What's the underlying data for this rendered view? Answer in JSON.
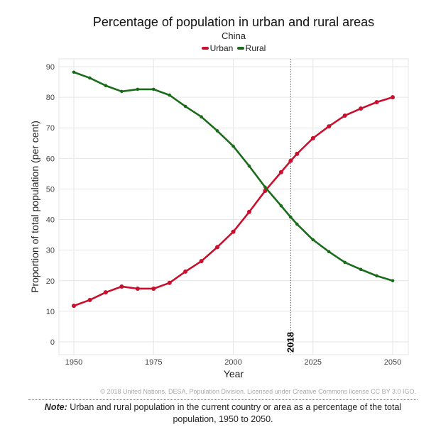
{
  "chart_data": {
    "type": "line",
    "title": "Percentage of population in urban and rural areas",
    "subtitle": "China",
    "xlabel": "Year",
    "ylabel": "Proportion of total population (per cent)",
    "xlim": [
      1950,
      2050
    ],
    "ylim": [
      0,
      90
    ],
    "xticks": [
      1950,
      1975,
      2000,
      2025,
      2050
    ],
    "yticks": [
      0,
      10,
      20,
      30,
      40,
      50,
      60,
      70,
      80,
      90
    ],
    "grid": true,
    "legend_position": "top",
    "marker_line": {
      "x": 2018,
      "label": "2018"
    },
    "x": [
      1950,
      1955,
      1960,
      1965,
      1970,
      1975,
      1980,
      1985,
      1990,
      1995,
      2000,
      2005,
      2010,
      2015,
      2018,
      2020,
      2025,
      2030,
      2035,
      2040,
      2045,
      2050
    ],
    "series": [
      {
        "name": "Urban",
        "color": "#c8102e",
        "values": [
          11.8,
          13.7,
          16.2,
          18.1,
          17.4,
          17.4,
          19.3,
          23.0,
          26.4,
          31.0,
          36.0,
          42.5,
          49.4,
          55.5,
          59.2,
          61.5,
          66.6,
          70.5,
          74.0,
          76.3,
          78.4,
          80.0
        ]
      },
      {
        "name": "Rural",
        "color": "#1a6b1a",
        "values": [
          88.2,
          86.3,
          83.8,
          81.9,
          82.6,
          82.6,
          80.7,
          77.0,
          73.6,
          69.0,
          64.0,
          57.5,
          50.6,
          44.5,
          40.8,
          38.5,
          33.4,
          29.5,
          26.0,
          23.7,
          21.6,
          20.0
        ]
      }
    ]
  },
  "footer": {
    "credit": "© 2018 United Nations, DESA, Population Division. Licensed under Creative Commons license CC BY 3.0 IGO.",
    "note_label": "Note:",
    "note_text": " Urban and rural population in the current country or area as a percentage of the total population, 1950 to 2050."
  }
}
